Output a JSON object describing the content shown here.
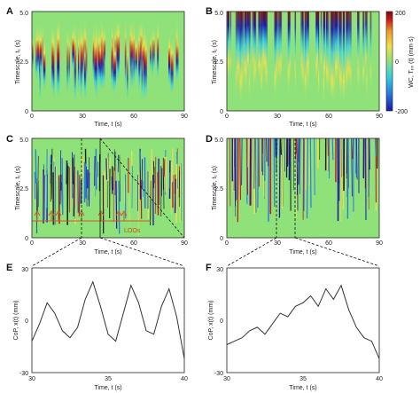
{
  "figure": {
    "colors": {
      "background_green": "#8fe27a",
      "trace": "#333333",
      "loo_orange": "#d4541e",
      "colorbar_stops": [
        "#1a1aa8",
        "#2a7de0",
        "#36d1e0",
        "#8fe27a",
        "#f0e04a",
        "#f09a2a",
        "#c91818",
        "#7a0c0c"
      ]
    },
    "panels": {
      "A": {
        "letter": "A"
      },
      "B": {
        "letter": "B"
      },
      "C": {
        "letter": "C"
      },
      "D": {
        "letter": "D"
      },
      "E": {
        "letter": "E"
      },
      "F": {
        "letter": "F"
      }
    },
    "loo_label": "LOOs"
  },
  "chart_data": [
    {
      "id": "A",
      "type": "heatmap",
      "xlabel": "Time, t (s)",
      "ylabel": "Timescale, t₁ (s)",
      "xlim": [
        0,
        90
      ],
      "ylim": [
        0,
        5.0
      ],
      "xticks": [
        "0",
        "30",
        "60",
        "90"
      ],
      "yticks": [
        "0",
        "2.5",
        "5.0"
      ]
    },
    {
      "id": "B",
      "type": "heatmap",
      "xlabel": "Time, t (s)",
      "ylabel": "Timescale, t₁ (s)",
      "xlim": [
        0,
        90
      ],
      "ylim": [
        0,
        5.0
      ],
      "xticks": [
        "0",
        "30",
        "60",
        "90"
      ],
      "yticks": [
        "0",
        "2.5",
        "5.0"
      ],
      "colorbar": {
        "label": "WC, Tₚₓ (t) (mm·s)",
        "range": [
          -200,
          200
        ],
        "ticks": [
          "-200",
          "0",
          "200"
        ]
      }
    },
    {
      "id": "C",
      "type": "heatmap",
      "xlabel": "Time, t (s)",
      "ylabel": "Timescale, t₁ (s)",
      "xlim": [
        0,
        90
      ],
      "ylim": [
        0,
        5.0
      ],
      "xticks": [
        "0",
        "30",
        "60",
        "90"
      ],
      "yticks": [
        "0",
        "2.5",
        "5.0"
      ],
      "annotation": "LOOs"
    },
    {
      "id": "D",
      "type": "heatmap",
      "xlabel": "Time, t (s)",
      "ylabel": "Timescale, t₁ (s)",
      "xlim": [
        0,
        90
      ],
      "ylim": [
        0,
        5.0
      ],
      "xticks": [
        "0",
        "30",
        "60",
        "90"
      ],
      "yticks": [
        "0",
        "2.5",
        "5.0"
      ]
    },
    {
      "id": "E",
      "type": "line",
      "xlabel": "Time, t (s)",
      "ylabel": "CoP, x(t) (mm)",
      "xlim": [
        30,
        40
      ],
      "ylim": [
        -30,
        30
      ],
      "xticks": [
        "30",
        "35",
        "40"
      ],
      "yticks": [
        "-30",
        "0",
        "30"
      ],
      "x": [
        30,
        30.5,
        31,
        31.5,
        32,
        32.5,
        33,
        33.5,
        34,
        34.5,
        35,
        35.5,
        36,
        36.5,
        37,
        37.5,
        38,
        38.5,
        39,
        39.5,
        40
      ],
      "y": [
        -12,
        -2,
        10,
        4,
        -6,
        -10,
        -4,
        12,
        22,
        8,
        -8,
        -12,
        4,
        20,
        10,
        -6,
        -8,
        8,
        18,
        2,
        -22
      ]
    },
    {
      "id": "F",
      "type": "line",
      "xlabel": "Time, t (s)",
      "ylabel": "CoP, x(t) (mm)",
      "xlim": [
        30,
        40
      ],
      "ylim": [
        -30,
        30
      ],
      "xticks": [
        "30",
        "35",
        "40"
      ],
      "yticks": [
        "-30",
        "0",
        "30"
      ],
      "x": [
        30,
        30.5,
        31,
        31.5,
        32,
        32.5,
        33,
        33.5,
        34,
        34.5,
        35,
        35.5,
        36,
        36.5,
        37,
        37.5,
        38,
        38.5,
        39,
        39.5,
        40
      ],
      "y": [
        -14,
        -12,
        -10,
        -6,
        -4,
        -8,
        -2,
        4,
        2,
        8,
        10,
        14,
        8,
        18,
        12,
        20,
        6,
        -4,
        -10,
        -12,
        -22
      ]
    }
  ]
}
